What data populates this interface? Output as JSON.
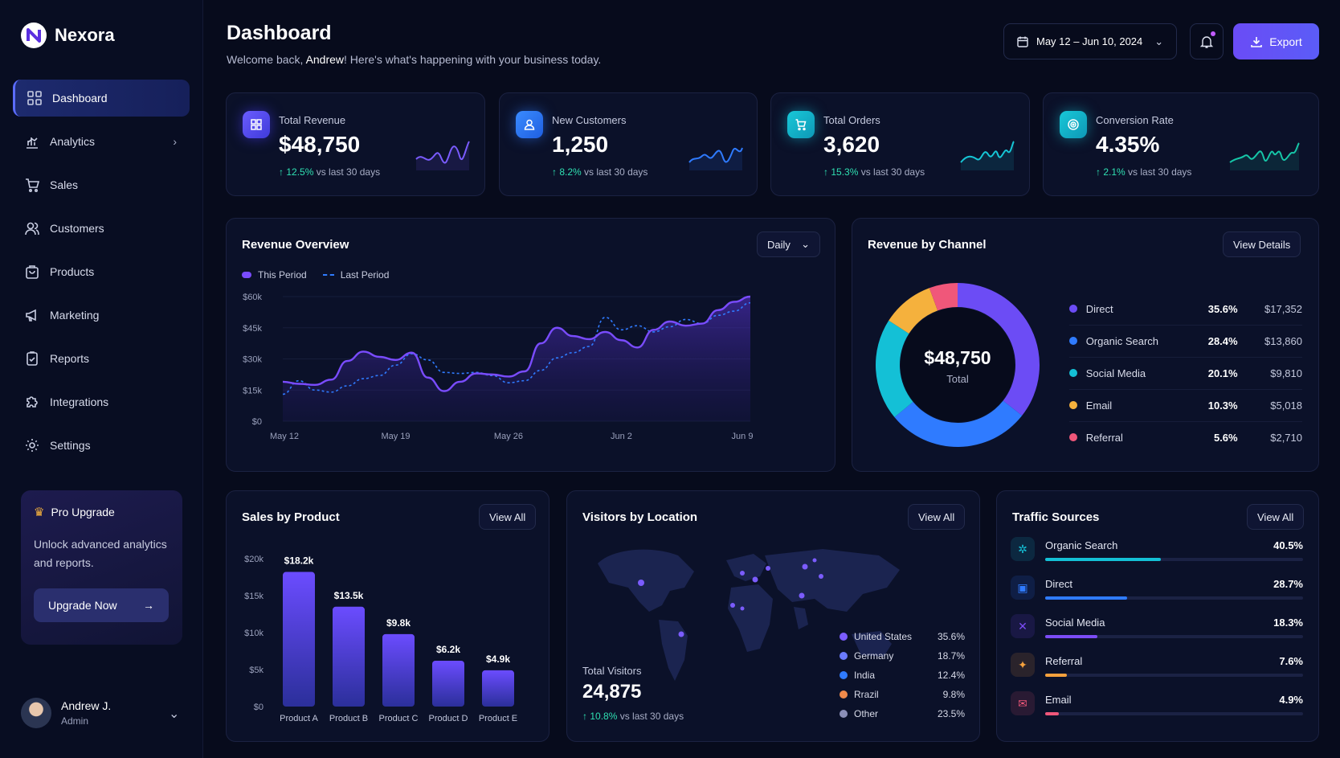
{
  "app": {
    "name": "Nexora"
  },
  "sidebar": {
    "items": [
      {
        "label": "Dashboard",
        "icon": "grid-icon"
      },
      {
        "label": "Analytics",
        "icon": "bar-chart-icon"
      },
      {
        "label": "Sales",
        "icon": "cart-icon"
      },
      {
        "label": "Customers",
        "icon": "users-icon"
      },
      {
        "label": "Products",
        "icon": "bag-icon"
      },
      {
        "label": "Marketing",
        "icon": "megaphone-icon"
      },
      {
        "label": "Reports",
        "icon": "report-icon"
      },
      {
        "label": "Integrations",
        "icon": "puzzle-icon"
      },
      {
        "label": "Settings",
        "icon": "gear-icon"
      }
    ],
    "pro": {
      "title": "Pro Upgrade",
      "text": "Unlock advanced analytics and reports.",
      "button": "Upgrade Now"
    },
    "user": {
      "name": "Andrew J.",
      "role": "Admin"
    }
  },
  "header": {
    "title": "Dashboard",
    "welcome_prefix": "Welcome back, ",
    "welcome_name": "Andrew",
    "welcome_suffix": "! Here's what's happening with your business today.",
    "date_range": "May 12 – Jun 10, 2024",
    "export_label": "Export"
  },
  "kpis": [
    {
      "label": "Total Revenue",
      "value": "$48,750",
      "delta": "12.5%",
      "delta_text": "vs last 30 days",
      "color": "#6a5cff"
    },
    {
      "label": "New Customers",
      "value": "1,250",
      "delta": "8.2%",
      "delta_text": "vs last 30 days",
      "color": "#2f7bff"
    },
    {
      "label": "Total Orders",
      "value": "3,620",
      "delta": "15.3%",
      "delta_text": "vs last 30 days",
      "color": "#12c2d9"
    },
    {
      "label": "Conversion Rate",
      "value": "4.35%",
      "delta": "2.1%",
      "delta_text": "vs last 30 days",
      "color": "#15b8c8"
    }
  ],
  "revenue_overview": {
    "title": "Revenue Overview",
    "period_select": "Daily",
    "legend": [
      "This Period",
      "Last Period"
    ]
  },
  "revenue_by_channel": {
    "title": "Revenue by Channel",
    "button": "View Details",
    "total": "$48,750",
    "total_label": "Total",
    "rows": [
      {
        "name": "Direct",
        "pct": "35.6%",
        "value": "$17,352",
        "color": "#6c4cf5"
      },
      {
        "name": "Organic Search",
        "pct": "28.4%",
        "value": "$13,860",
        "color": "#2f7bff"
      },
      {
        "name": "Social Media",
        "pct": "20.1%",
        "value": "$9,810",
        "color": "#14c0d6"
      },
      {
        "name": "Email",
        "pct": "10.3%",
        "value": "$5,018",
        "color": "#f5b13d"
      },
      {
        "name": "Referral",
        "pct": "5.6%",
        "value": "$2,710",
        "color": "#f0577a"
      }
    ]
  },
  "sales_by_product": {
    "title": "Sales by Product",
    "button": "View All"
  },
  "visitors": {
    "title": "Visitors by Location",
    "button": "View All",
    "total_label": "Total Visitors",
    "total": "24,875",
    "delta": "10.8%",
    "delta_text": "vs last 30 days",
    "rows": [
      {
        "name": "United States",
        "pct": "35.6%",
        "color": "#7b5cff"
      },
      {
        "name": "Germany",
        "pct": "18.7%",
        "color": "#6b7bff"
      },
      {
        "name": "India",
        "pct": "12.4%",
        "color": "#2f7bff"
      },
      {
        "name": "Rrazil",
        "pct": "9.8%",
        "color": "#f08a4b"
      },
      {
        "name": "Other",
        "pct": "23.5%",
        "color": "#8b8fb8"
      }
    ]
  },
  "traffic": {
    "title": "Traffic Sources",
    "button": "View All",
    "rows": [
      {
        "name": "Organic Search",
        "pct": "40.5%",
        "value": 40.5,
        "color": "#14c0d6",
        "icon": "organic-icon"
      },
      {
        "name": "Direct",
        "pct": "28.7%",
        "value": 28.7,
        "color": "#2f7bff",
        "icon": "direct-icon"
      },
      {
        "name": "Social Media",
        "pct": "18.3%",
        "value": 18.3,
        "color": "#7b4cf5",
        "icon": "social-icon"
      },
      {
        "name": "Referral",
        "pct": "7.6%",
        "value": 7.6,
        "color": "#f5a13d",
        "icon": "referral-icon"
      },
      {
        "name": "Email",
        "pct": "4.9%",
        "value": 4.9,
        "color": "#f0577a",
        "icon": "email-icon"
      }
    ]
  },
  "chart_data": [
    {
      "type": "line",
      "title": "Revenue Overview",
      "x_ticks": [
        "May 12",
        "May 19",
        "May 26",
        "Jun 2",
        "Jun 9"
      ],
      "y_ticks": [
        "$0",
        "$15k",
        "$30k",
        "$45k",
        "$60k"
      ],
      "ylim": [
        0,
        60000
      ],
      "x_count": 30,
      "series": [
        {
          "name": "This Period",
          "color": "#7a4cff",
          "values": [
            19000,
            18000,
            17500,
            20000,
            29000,
            33500,
            31000,
            29500,
            33000,
            21000,
            14500,
            19000,
            23000,
            22500,
            21500,
            24000,
            37500,
            45000,
            41000,
            39500,
            43000,
            39000,
            35500,
            44000,
            48000,
            46000,
            47000,
            53500,
            57500,
            60000
          ]
        },
        {
          "name": "Last Period",
          "color": "#2f7bff",
          "values": [
            13000,
            19500,
            15000,
            14000,
            17000,
            20500,
            22000,
            27000,
            32500,
            29500,
            23500,
            23000,
            23500,
            22000,
            18500,
            19500,
            24500,
            30500,
            33000,
            36000,
            50000,
            44000,
            46000,
            43000,
            45500,
            49000,
            47000,
            51000,
            53000,
            57000
          ]
        }
      ]
    },
    {
      "type": "pie",
      "title": "Revenue by Channel",
      "categories": [
        "Direct",
        "Organic Search",
        "Social Media",
        "Email",
        "Referral"
      ],
      "values": [
        35.6,
        28.4,
        20.1,
        10.3,
        5.6
      ]
    },
    {
      "type": "bar",
      "title": "Sales by Product",
      "categories": [
        "Product A",
        "Product B",
        "Product C",
        "Product D",
        "Product E"
      ],
      "values": [
        18200,
        13500,
        9800,
        6200,
        4900
      ],
      "labels": [
        "$18.2k",
        "$13.5k",
        "$9.8k",
        "$6.2k",
        "$4.9k"
      ],
      "y_ticks": [
        "$0",
        "$5k",
        "$10k",
        "$15k",
        "$20k"
      ],
      "ylim": [
        0,
        20000
      ]
    }
  ]
}
